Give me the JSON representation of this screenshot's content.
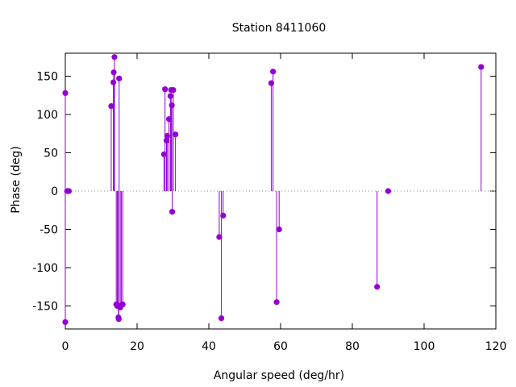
{
  "chart_data": {
    "type": "scatter",
    "style": "impulses",
    "title": "Station 8411060",
    "xlabel": "Angular speed (deg/hr)",
    "ylabel": "Phase (deg)",
    "xlim": [
      0,
      120
    ],
    "ylim": [
      -180,
      180
    ],
    "xticks": [
      0,
      20,
      40,
      60,
      80,
      100,
      120
    ],
    "yticks": [
      -150,
      -100,
      -50,
      0,
      50,
      100,
      150
    ],
    "grid": false,
    "zero_line": "dotted",
    "color": "#9400d3",
    "points": [
      {
        "x": 0.0,
        "y": 128
      },
      {
        "x": 0.0,
        "y": -171
      },
      {
        "x": 0.5,
        "y": 0
      },
      {
        "x": 1.0,
        "y": 0
      },
      {
        "x": 12.8,
        "y": 111
      },
      {
        "x": 13.4,
        "y": 142
      },
      {
        "x": 13.5,
        "y": 155
      },
      {
        "x": 13.7,
        "y": 175
      },
      {
        "x": 14.2,
        "y": -148
      },
      {
        "x": 14.5,
        "y": -150
      },
      {
        "x": 14.8,
        "y": -165
      },
      {
        "x": 14.9,
        "y": -167
      },
      {
        "x": 15.0,
        "y": 147
      },
      {
        "x": 15.3,
        "y": -152
      },
      {
        "x": 15.6,
        "y": -149
      },
      {
        "x": 16.0,
        "y": -148
      },
      {
        "x": 27.5,
        "y": 48
      },
      {
        "x": 27.8,
        "y": 133
      },
      {
        "x": 28.2,
        "y": 66
      },
      {
        "x": 28.4,
        "y": 72
      },
      {
        "x": 28.9,
        "y": 94
      },
      {
        "x": 29.3,
        "y": 124
      },
      {
        "x": 29.5,
        "y": 132
      },
      {
        "x": 29.7,
        "y": 112
      },
      {
        "x": 29.8,
        "y": -27
      },
      {
        "x": 30.1,
        "y": 132
      },
      {
        "x": 30.7,
        "y": 74
      },
      {
        "x": 42.9,
        "y": -60
      },
      {
        "x": 43.5,
        "y": -166
      },
      {
        "x": 44.0,
        "y": -32
      },
      {
        "x": 57.4,
        "y": 141
      },
      {
        "x": 57.9,
        "y": 156
      },
      {
        "x": 58.9,
        "y": -145
      },
      {
        "x": 59.6,
        "y": -50
      },
      {
        "x": 86.9,
        "y": -125
      },
      {
        "x": 90.0,
        "y": 0
      },
      {
        "x": 115.9,
        "y": 162
      }
    ]
  }
}
